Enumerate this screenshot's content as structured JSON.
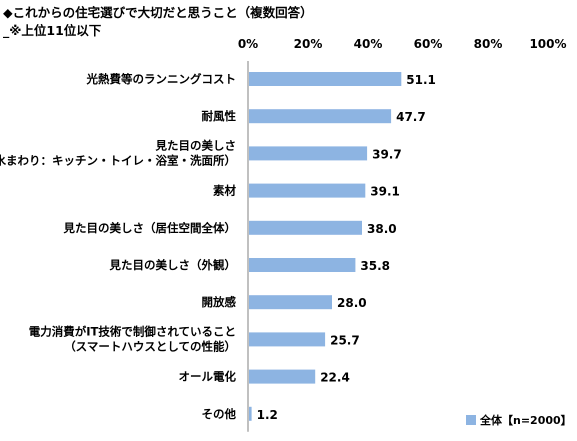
{
  "title": "◆これからの住宅選びで大切だと思うこと（複数回答）",
  "subtitle": "_※上位11位以下",
  "chart_data": {
    "type": "bar",
    "orientation": "horizontal",
    "title": "◆これからの住宅選びで大切だと思うこと（複数回答）",
    "subtitle": "_※上位11位以下",
    "xlim": [
      0,
      100
    ],
    "tick_values": [
      0,
      20,
      40,
      60,
      80,
      100
    ],
    "tick_labels": [
      "0%",
      "20%",
      "40%",
      "60%",
      "80%",
      "100%"
    ],
    "categories": [
      [
        "光熱費等のランニングコスト"
      ],
      [
        "耐風性"
      ],
      [
        "見た目の美しさ",
        "（水まわり：キッチン・トイレ・浴室・洗面所）"
      ],
      [
        "素材"
      ],
      [
        "見た目の美しさ（居住空間全体）"
      ],
      [
        "見た目の美しさ（外観）"
      ],
      [
        "開放感"
      ],
      [
        "電力消費がIT技術で制御されていること",
        "（スマートハウスとしての性能）"
      ],
      [
        "オール電化"
      ],
      [
        "その他"
      ]
    ],
    "series": [
      {
        "name": "全体【n=2000】",
        "color": "#8DB4E2",
        "values": [
          51.1,
          47.7,
          39.7,
          39.1,
          38.0,
          35.8,
          28.0,
          25.7,
          22.4,
          1.2
        ],
        "labels": [
          "51.1",
          "47.7",
          "39.7",
          "39.1",
          "38.0",
          "35.8",
          "28.0",
          "25.7",
          "22.4",
          "1.2"
        ]
      }
    ],
    "legend_position": "bottom-right",
    "grid": false
  }
}
